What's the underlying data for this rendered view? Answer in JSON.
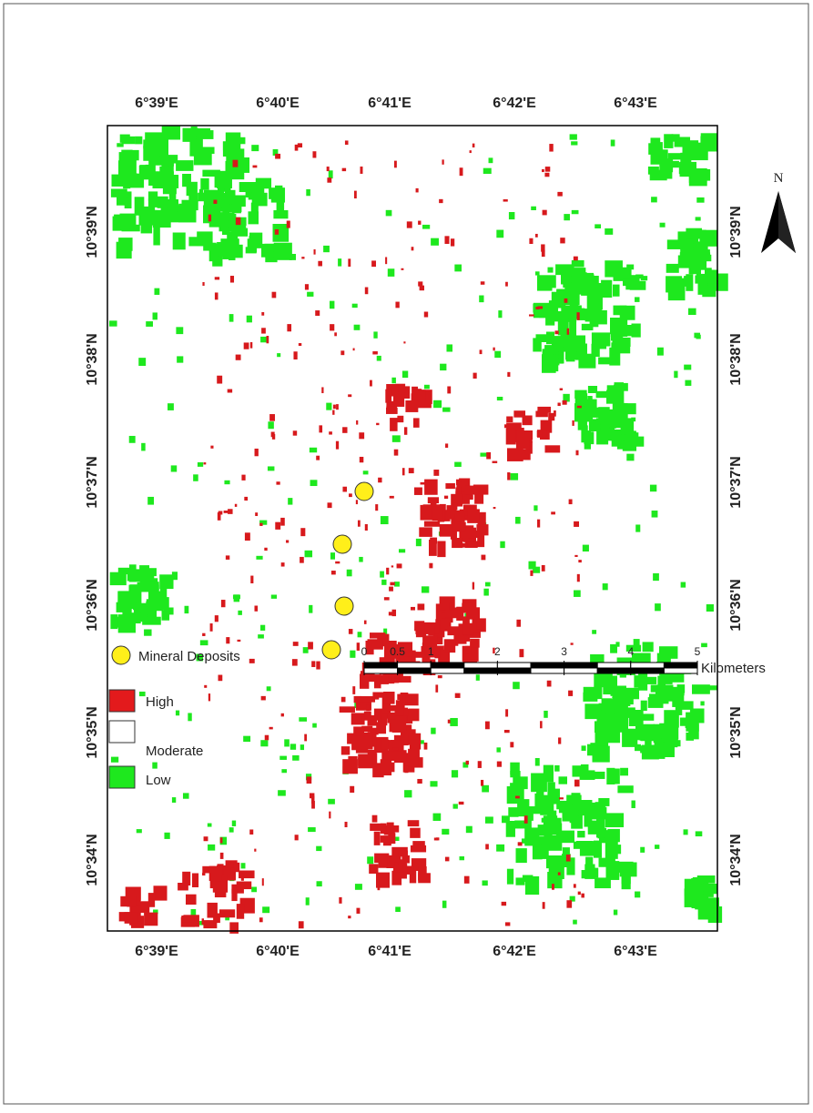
{
  "map": {
    "lon_labels": [
      "6°39'E",
      "6°40'E",
      "6°41'E",
      "6°42'E",
      "6°43'E"
    ],
    "lat_labels": [
      "10°39'N",
      "10°38'N",
      "10°37'N",
      "10°36'N",
      "10°35'N",
      "10°34'N"
    ],
    "north": "N",
    "legend": [
      "Mineral Deposits",
      "High",
      "Moderate",
      "Low"
    ],
    "scale": {
      "ticks": [
        0,
        0.5,
        1,
        2,
        3,
        4,
        5
      ],
      "unit": "Kilometers"
    }
  }
}
